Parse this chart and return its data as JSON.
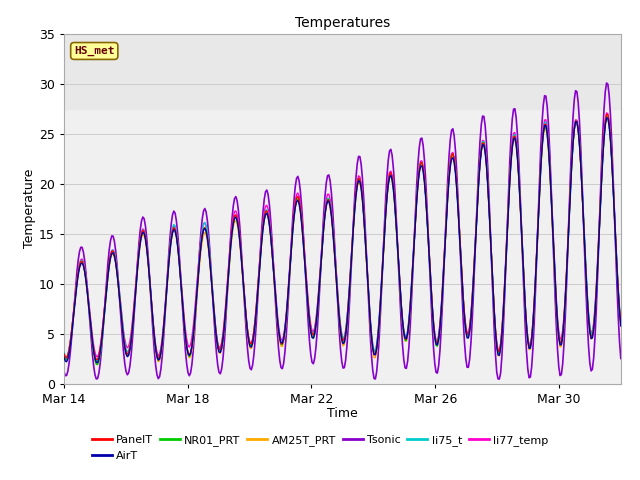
{
  "title": "Temperatures",
  "xlabel": "Time",
  "ylabel": "Temperature",
  "ylim": [
    0,
    35
  ],
  "x_ticks_labels": [
    "Mar 14",
    "Mar 18",
    "Mar 22",
    "Mar 26",
    "Mar 30"
  ],
  "x_ticks_pos": [
    0,
    4,
    8,
    12,
    16
  ],
  "series_names": [
    "PanelT",
    "AirT",
    "NR01_PRT",
    "AM25T_PRT",
    "Tsonic",
    "li75_t",
    "li77_temp"
  ],
  "series_colors": [
    "#ff0000",
    "#0000aa",
    "#00cc00",
    "#ffaa00",
    "#8800cc",
    "#00cccc",
    "#ff00cc"
  ],
  "annotation_text": "HS_met",
  "annotation_bg": "#ffff99",
  "annotation_border": "#886600",
  "annotation_text_color": "#660000",
  "bg_band_y1": 27.5,
  "bg_band_y2": 35,
  "bg_band_color": "#e8e8e8",
  "plot_bg": "#f0f0f0",
  "grid_color": "#cccccc",
  "n_days": 18,
  "n_per_day": 24
}
